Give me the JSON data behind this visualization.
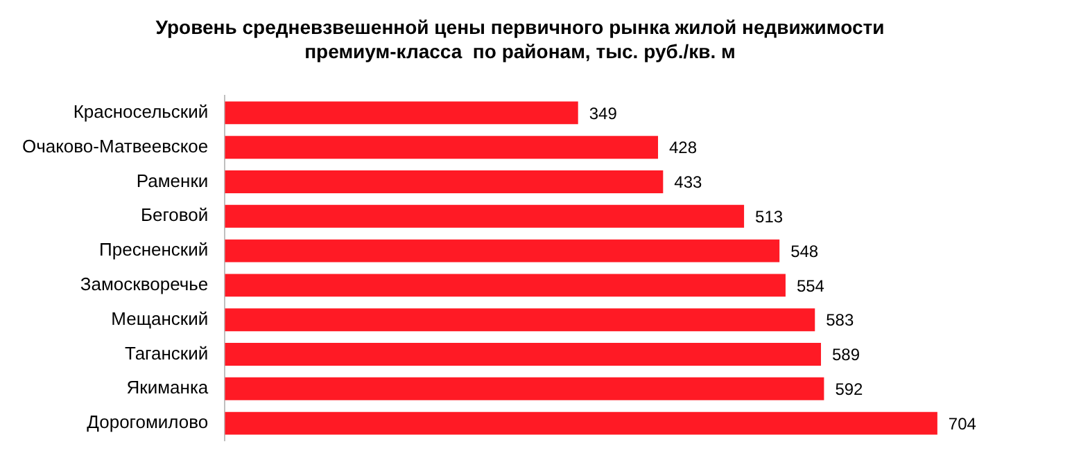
{
  "chart_data": {
    "type": "bar",
    "orientation": "horizontal",
    "title": "Уровень средневзвешенной цены первичного рынка жилой недвижимости\nпремиум-класса  по районам, тыс. руб./кв. м",
    "categories": [
      "Красносельский",
      "Очаково-Матвеевское",
      "Раменки",
      "Беговой",
      "Пресненский",
      "Замоскворечье",
      "Мещанский",
      "Таганский",
      "Якиманка",
      "Дорогомилово"
    ],
    "values": [
      349,
      428,
      433,
      513,
      548,
      554,
      583,
      589,
      592,
      704
    ],
    "color": "#ff1a25",
    "data_labels": true,
    "tick_labels": "y"
  }
}
